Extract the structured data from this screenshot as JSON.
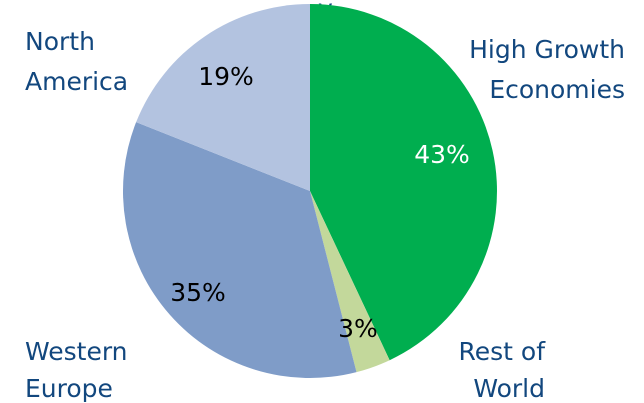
{
  "chart_data": {
    "type": "pie",
    "title": "",
    "partial_title_glyph": "y",
    "slices": [
      {
        "label_lines": [
          "High Growth",
          "Economies"
        ],
        "value": 43,
        "display": "43%",
        "color": "#00ae4f",
        "pct_color": "#ffffff"
      },
      {
        "label_lines": [
          "Rest of",
          "World"
        ],
        "value": 3,
        "display": "3%",
        "color": "#c3d89b",
        "pct_color": "#000000"
      },
      {
        "label_lines": [
          "Western",
          "Europe"
        ],
        "value": 35,
        "display": "35%",
        "color": "#7f9cc8",
        "pct_color": "#000000"
      },
      {
        "label_lines": [
          "North",
          "America"
        ],
        "value": 19,
        "display": "19%",
        "color": "#b3c3e0",
        "pct_color": "#000000"
      }
    ],
    "start_angle_deg": 0,
    "direction": "clockwise",
    "legend": "none"
  }
}
